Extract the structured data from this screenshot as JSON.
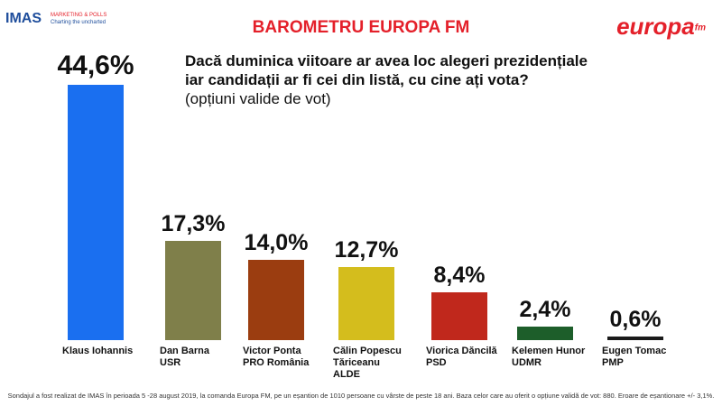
{
  "chart_data": {
    "type": "bar",
    "title": "BAROMETRU EUROPA FM",
    "question": [
      "Dacă duminica viitoare ar avea loc alegeri prezidențiale",
      "iar candidații ar fi cei din listă, cu cine ați vota?",
      "(opțiuni valide de vot)"
    ],
    "categories": [
      [
        "Klaus Iohannis"
      ],
      [
        "Dan Barna",
        "USR"
      ],
      [
        "Victor Ponta",
        "PRO România"
      ],
      [
        "Călin Popescu Tăriceanu",
        "ALDE"
      ],
      [
        "Viorica Dăncilă",
        "PSD"
      ],
      [
        "Kelemen Hunor",
        "UDMR"
      ],
      [
        "Eugen Tomac",
        "PMP"
      ]
    ],
    "values": [
      44.6,
      17.3,
      14.0,
      12.7,
      8.4,
      2.4,
      0.6
    ],
    "value_labels": [
      "44,6%",
      "17,3%",
      "14,0%",
      "12,7%",
      "8,4%",
      "2,4%",
      "0,6%"
    ],
    "colors": [
      "#1a6ff0",
      "#7f7f4a",
      "#9b3d10",
      "#d4bd1d",
      "#c0281c",
      "#1d5e2a",
      "#1a1a1a"
    ],
    "footnote": "Sondajul a fost realizat de IMAS în perioada 5 -28 august 2019, la comanda Europa FM, pe un eșantion de 1010 persoane cu vârste de peste 18 ani. Baza celor care au oferit o opțiune validă de vot: 880. Eroare de eșantionare +/- 3,1%.",
    "logo_left": [
      "IMAS",
      "MARKETING & POLLS",
      "Charting the uncharted"
    ],
    "logo_right": [
      "europa",
      "fm"
    ]
  }
}
